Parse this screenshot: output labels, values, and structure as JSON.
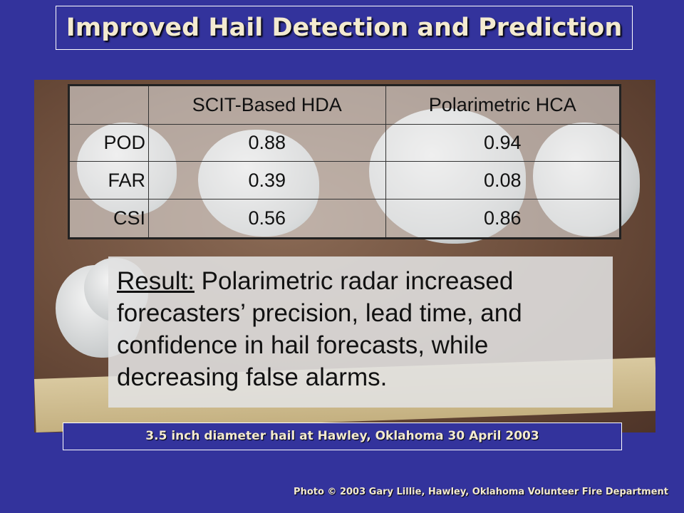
{
  "title": "Improved Hail Detection and Prediction",
  "table": {
    "columns": [
      "SCIT-Based HDA",
      "Polarimetric HCA"
    ],
    "rows": [
      {
        "label": "POD",
        "values": [
          0.88,
          0.94
        ]
      },
      {
        "label": "FAR",
        "values": [
          0.39,
          0.08
        ]
      },
      {
        "label": "CSI",
        "values": [
          0.56,
          0.86
        ]
      }
    ]
  },
  "result": {
    "label": "Result:",
    "text": "Polarimetric radar increased forecasters’ precision, lead time, and confidence in hail forecasts, while decreasing false alarms."
  },
  "caption": "3.5 inch diameter hail at Hawley, Oklahoma 30 April 2003",
  "credit": "Photo © 2003 Gary Lillie, Hawley, Oklahoma Volunteer Fire Department"
}
